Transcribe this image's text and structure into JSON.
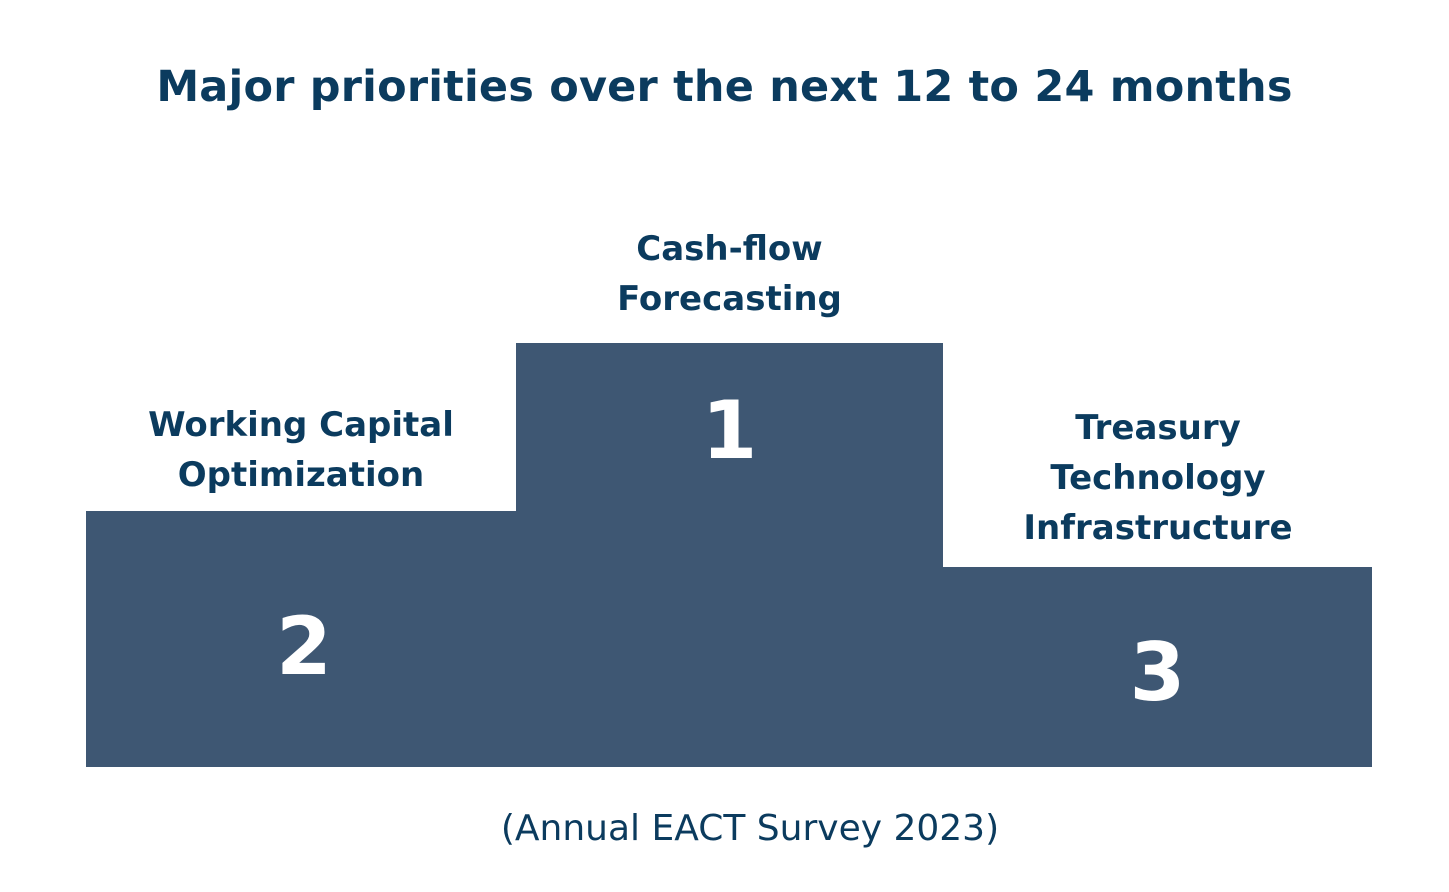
{
  "title": "Major priorities over the next 12 to 24 months",
  "podium": [
    {
      "rank": "2",
      "label_lines": [
        "Working Capital",
        "Optimization"
      ]
    },
    {
      "rank": "1",
      "label_lines": [
        "Cash-flow",
        "Forecasting"
      ]
    },
    {
      "rank": "3",
      "label_lines": [
        "Treasury",
        "Technology",
        "Infrastructure"
      ]
    }
  ],
  "source": "(Annual EACT Survey 2023)",
  "colors": {
    "block": "#3e5773",
    "text": "#0b3b5e",
    "rank_text": "#ffffff"
  }
}
